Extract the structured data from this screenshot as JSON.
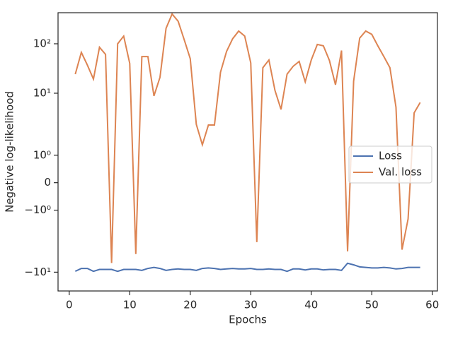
{
  "chart_data": {
    "type": "line",
    "xlabel": "Epochs",
    "ylabel": "Negative log-likelihood",
    "x": [
      1,
      2,
      3,
      4,
      5,
      6,
      7,
      8,
      9,
      10,
      11,
      12,
      13,
      14,
      15,
      16,
      17,
      18,
      19,
      20,
      21,
      22,
      23,
      24,
      25,
      26,
      27,
      28,
      29,
      30,
      31,
      32,
      33,
      34,
      35,
      36,
      37,
      38,
      39,
      40,
      41,
      42,
      43,
      44,
      45,
      46,
      47,
      48,
      49,
      50,
      51,
      52,
      53,
      54,
      55,
      56,
      57,
      58
    ],
    "series": [
      {
        "name": "Loss",
        "color": "#4c72b0",
        "values": [
          -9.6,
          -8.4,
          -8.4,
          -9.6,
          -8.8,
          -8.8,
          -8.8,
          -9.6,
          -8.8,
          -8.8,
          -8.8,
          -9.2,
          -8.4,
          -8.0,
          -8.4,
          -9.2,
          -8.8,
          -8.6,
          -8.8,
          -8.8,
          -9.2,
          -8.4,
          -8.2,
          -8.4,
          -8.8,
          -8.6,
          -8.4,
          -8.6,
          -8.6,
          -8.4,
          -8.8,
          -8.8,
          -8.6,
          -8.8,
          -8.8,
          -9.6,
          -8.6,
          -8.6,
          -9.0,
          -8.6,
          -8.6,
          -9.0,
          -8.8,
          -8.8,
          -9.2,
          -6.6,
          -7.1,
          -7.8,
          -8.0,
          -8.2,
          -8.2,
          -8.0,
          -8.2,
          -8.6,
          -8.4,
          -8.0,
          -8.0,
          -8.0
        ]
      },
      {
        "name": "Val. loss",
        "color": "#dd8452",
        "values": [
          24.3,
          67,
          37,
          19.3,
          85,
          61,
          -6.5,
          100,
          143,
          40,
          -4.3,
          55,
          55,
          8.8,
          21,
          205,
          400,
          285,
          121,
          50,
          2.35,
          1.38,
          2.27,
          2.27,
          26.6,
          70,
          126,
          181,
          143,
          41,
          -2.47,
          32.8,
          47,
          11.4,
          4.7,
          24.3,
          35,
          44,
          17,
          47,
          97,
          91,
          46,
          14.8,
          73,
          -3.8,
          17.5,
          130,
          181,
          155,
          91,
          55,
          32.8,
          5.2,
          -3.5,
          -1.32,
          4.0,
          6.5
        ]
      }
    ],
    "xlim": [
      -1.85,
      60.85
    ],
    "xticks": [
      0,
      10,
      20,
      30,
      40,
      50,
      60
    ],
    "yscale": "symlog",
    "linthresh": 2,
    "ylim": [
      -24,
      425
    ],
    "yticks": [
      {
        "value": -10,
        "label": "−10¹"
      },
      {
        "value": -1,
        "label": "−10⁰"
      },
      0,
      {
        "value": 1,
        "label": "10⁰"
      },
      {
        "value": 10,
        "label": "10¹"
      },
      {
        "value": 100,
        "label": "10²"
      }
    ],
    "legend": "center right"
  }
}
